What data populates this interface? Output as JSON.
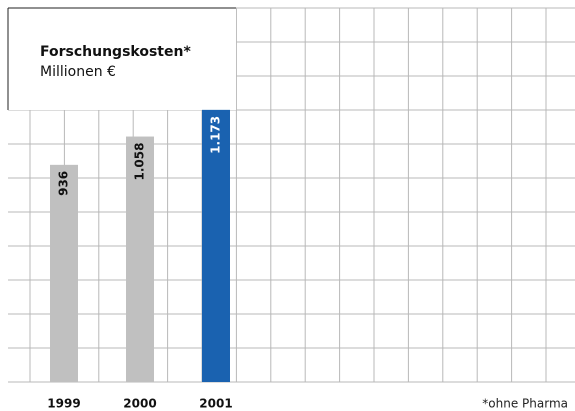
{
  "chart_data": {
    "type": "bar",
    "title": "Forschungskosten*",
    "subtitle": "Millionen €",
    "categories": [
      "1999",
      "2000",
      "2001"
    ],
    "values": [
      936,
      1058,
      1173
    ],
    "value_labels": [
      "936",
      "1.058",
      "1.173"
    ],
    "colors": [
      "#c0c0c0",
      "#c0c0c0",
      "#1a62b0"
    ],
    "ylim": [
      0,
      1612
    ],
    "grid": true,
    "footnote": "*ohne Pharma"
  }
}
